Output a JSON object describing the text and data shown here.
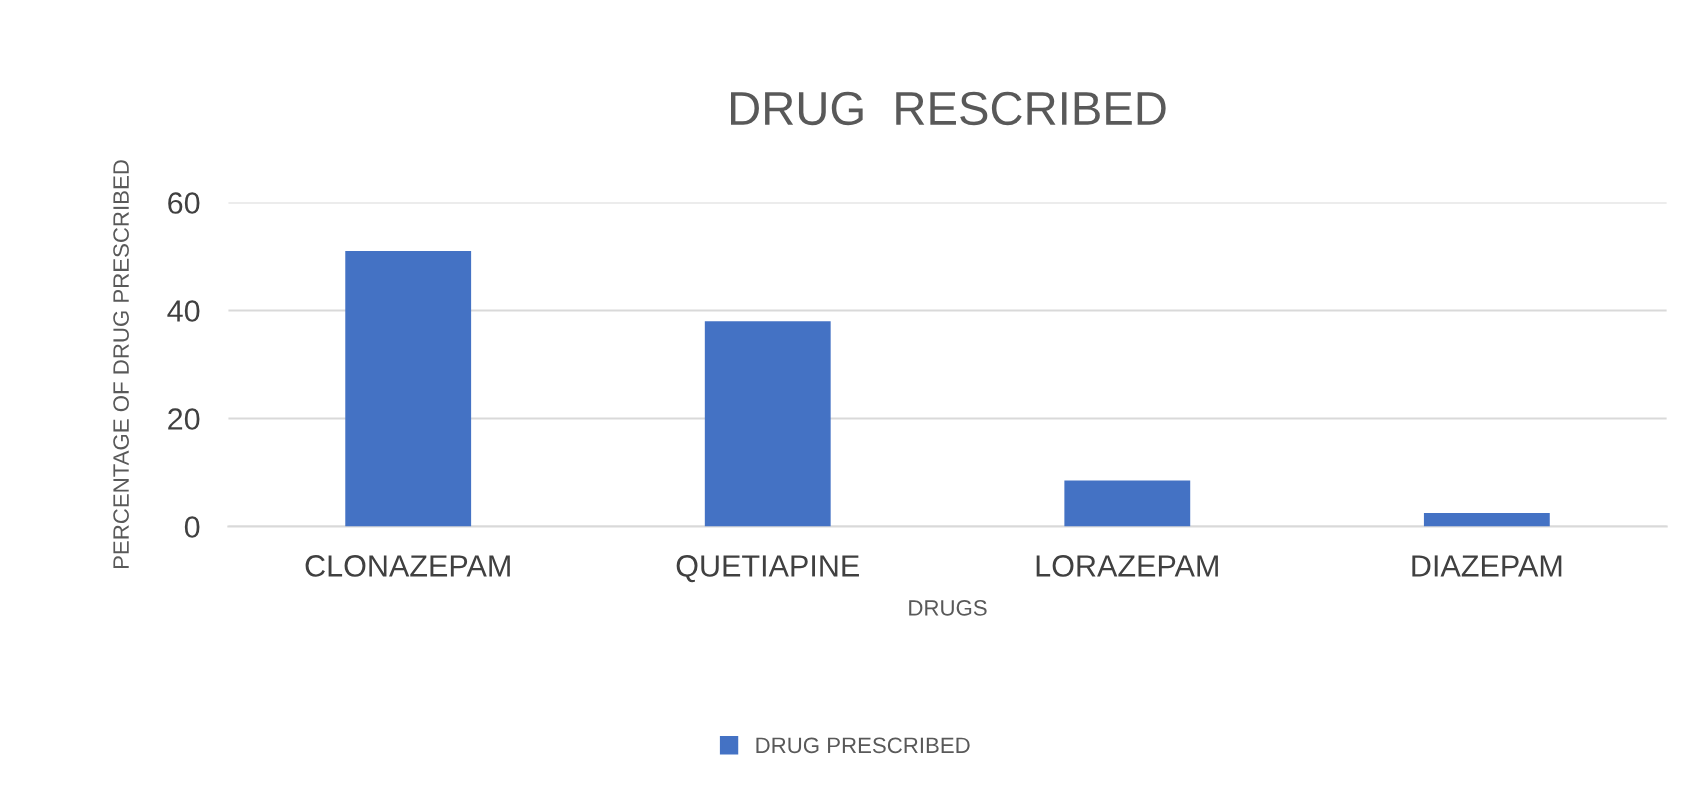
{
  "chart_data": {
    "type": "bar",
    "title": "DRUG  RESCRIBED",
    "xlabel": "DRUGS",
    "ylabel": "PERCENTAGE OF DRUG PRESCRIBED",
    "categories": [
      "CLONAZEPAM",
      "QUETIAPINE",
      "LORAZEPAM",
      "DIAZEPAM"
    ],
    "series": [
      {
        "name": "DRUG PRESCRIBED",
        "color": "#4472c4",
        "values": [
          51,
          38,
          8.5,
          2.5
        ]
      }
    ],
    "ylim": [
      0,
      60
    ],
    "yticks": [
      0,
      20,
      40,
      60
    ],
    "grid": "y",
    "legend": "bottom"
  }
}
